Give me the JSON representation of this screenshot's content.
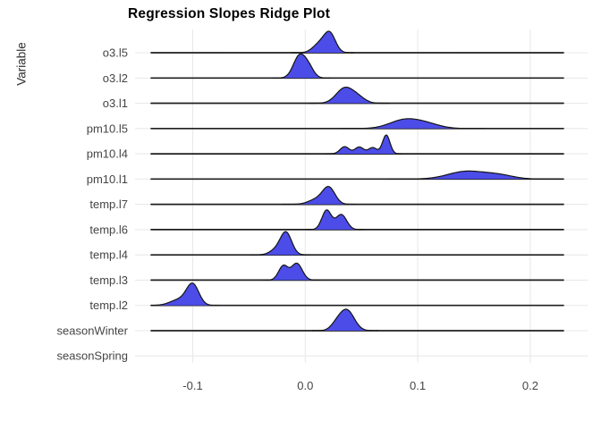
{
  "chart_data": {
    "type": "ridgeline",
    "title": "Regression Slopes Ridge Plot",
    "xlabel": "",
    "ylabel": "Variable",
    "x_ticks": [
      -0.1,
      0.0,
      0.1,
      0.2
    ],
    "x_tick_labels": [
      "-0.1",
      "0.0",
      "0.1",
      "0.2"
    ],
    "xlim": [
      -0.151,
      0.251
    ],
    "baseline_range": [
      -0.137,
      0.229
    ],
    "grid": true,
    "legend": "none",
    "rows": [
      {
        "label": "o3.l5",
        "peak": 0.022,
        "height": 24,
        "has_baseline": true,
        "components": [
          [
            0.013,
            0.006,
            0.5
          ],
          [
            0.022,
            0.005,
            1.0
          ]
        ]
      },
      {
        "label": "o3.l2",
        "peak": -0.004,
        "height": 27,
        "has_baseline": true,
        "components": [
          [
            -0.005,
            0.0055,
            1.0
          ],
          [
            0.0035,
            0.0045,
            0.38
          ]
        ]
      },
      {
        "label": "o3.l1",
        "peak": 0.036,
        "height": 18,
        "has_baseline": true,
        "components": [
          [
            0.035,
            0.0075,
            1.0
          ],
          [
            0.047,
            0.0065,
            0.35
          ]
        ]
      },
      {
        "label": "pm10.l5",
        "peak": 0.089,
        "height": 11,
        "has_baseline": true,
        "components": [
          [
            0.088,
            0.013,
            1.0
          ],
          [
            0.108,
            0.012,
            0.5
          ]
        ]
      },
      {
        "label": "pm10.l4",
        "peak": 0.072,
        "height": 21,
        "has_baseline": true,
        "components": [
          [
            0.035,
            0.004,
            0.38
          ],
          [
            0.048,
            0.004,
            0.36
          ],
          [
            0.06,
            0.0038,
            0.33
          ],
          [
            0.072,
            0.0033,
            1.0
          ]
        ]
      },
      {
        "label": "pm10.l1",
        "peak": 0.146,
        "height": 9,
        "has_baseline": true,
        "components": [
          [
            0.143,
            0.016,
            1.0
          ],
          [
            0.172,
            0.013,
            0.5
          ]
        ]
      },
      {
        "label": "temp.l7",
        "peak": 0.021,
        "height": 20,
        "has_baseline": true,
        "components": [
          [
            0.021,
            0.0055,
            1.0
          ],
          [
            0.01,
            0.007,
            0.3
          ]
        ]
      },
      {
        "label": "temp.l6",
        "peak": 0.019,
        "height": 22,
        "has_baseline": true,
        "components": [
          [
            0.019,
            0.0042,
            1.0
          ],
          [
            0.032,
            0.0048,
            0.78
          ]
        ]
      },
      {
        "label": "temp.l4",
        "peak": -0.017,
        "height": 26,
        "has_baseline": true,
        "components": [
          [
            -0.017,
            0.005,
            1.0
          ],
          [
            -0.026,
            0.0055,
            0.22
          ]
        ]
      },
      {
        "label": "temp.l3",
        "peak": -0.008,
        "height": 19,
        "has_baseline": true,
        "components": [
          [
            -0.0195,
            0.0042,
            0.85
          ],
          [
            -0.0075,
            0.0048,
            1.0
          ]
        ]
      },
      {
        "label": "temp.l2",
        "peak": -0.1,
        "height": 25,
        "has_baseline": true,
        "components": [
          [
            -0.1,
            0.0055,
            1.0
          ],
          [
            -0.112,
            0.008,
            0.28
          ]
        ]
      },
      {
        "label": "seasonWinter",
        "peak": 0.037,
        "height": 24,
        "has_baseline": true,
        "components": [
          [
            0.037,
            0.0065,
            1.0
          ],
          [
            0.0275,
            0.005,
            0.25
          ]
        ]
      },
      {
        "label": "seasonSpring",
        "peak": null,
        "height": 0,
        "has_baseline": false,
        "components": []
      }
    ]
  },
  "colors": {
    "density_fill": "#4c4ce8",
    "density_outline": "#141414",
    "baseline": "#1f1f1f",
    "gridline": "#e9e9e9",
    "axis_text": "#454545",
    "title_text": "#000000",
    "background": "#ffffff"
  }
}
